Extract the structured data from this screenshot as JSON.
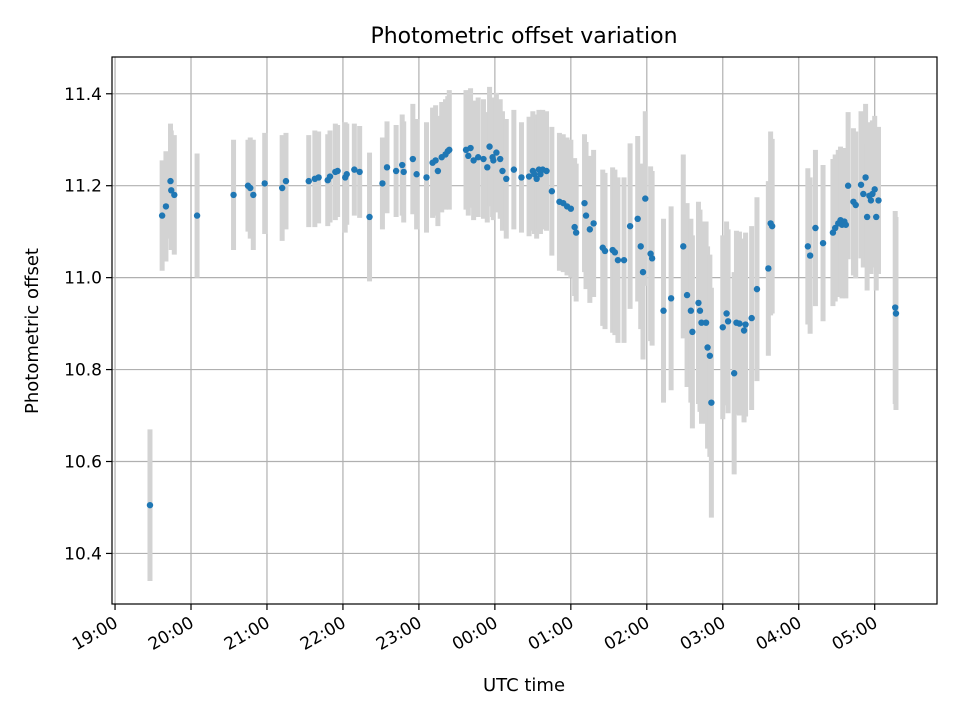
{
  "chart_data": {
    "type": "scatter",
    "title": "Photometric offset variation",
    "xlabel": "UTC time",
    "ylabel": "Photometric offset",
    "x_unit": "hours since 19:00 UTC",
    "xlim": [
      -0.04,
      10.82
    ],
    "ylim": [
      10.29,
      11.48
    ],
    "x_ticks": [
      0,
      1,
      2,
      3,
      4,
      5,
      6,
      7,
      8,
      9,
      10
    ],
    "x_tick_labels": [
      "19:00",
      "20:00",
      "21:00",
      "22:00",
      "23:00",
      "00:00",
      "01:00",
      "02:00",
      "03:00",
      "04:00",
      "05:00"
    ],
    "y_ticks": [
      10.4,
      10.6,
      10.8,
      11.0,
      11.2,
      11.4
    ],
    "y_tick_labels": [
      "10.4",
      "10.6",
      "10.8",
      "11.0",
      "11.2",
      "11.4"
    ],
    "grid": true,
    "marker_color": "#1f77b4",
    "errorbar_color": "#d3d3d3",
    "series": [
      {
        "name": "offset",
        "points": [
          [
            0.46,
            10.505,
            0.165
          ],
          [
            0.62,
            11.135,
            0.12
          ],
          [
            0.67,
            11.155,
            0.12
          ],
          [
            0.73,
            11.21,
            0.125
          ],
          [
            0.74,
            11.19,
            0.13
          ],
          [
            0.78,
            11.18,
            0.13
          ],
          [
            1.08,
            11.135,
            0.135
          ],
          [
            1.56,
            11.18,
            0.12
          ],
          [
            1.75,
            11.2,
            0.1
          ],
          [
            1.78,
            11.195,
            0.11
          ],
          [
            1.82,
            11.18,
            0.12
          ],
          [
            1.97,
            11.205,
            0.11
          ],
          [
            2.2,
            11.195,
            0.115
          ],
          [
            2.25,
            11.21,
            0.105
          ],
          [
            2.55,
            11.21,
            0.1
          ],
          [
            2.63,
            11.215,
            0.105
          ],
          [
            2.68,
            11.218,
            0.1
          ],
          [
            2.8,
            11.212,
            0.1
          ],
          [
            2.83,
            11.22,
            0.1
          ],
          [
            2.9,
            11.23,
            0.105
          ],
          [
            2.93,
            11.232,
            0.1
          ],
          [
            3.03,
            11.218,
            0.12
          ],
          [
            3.05,
            11.225,
            0.11
          ],
          [
            3.15,
            11.235,
            0.1
          ],
          [
            3.22,
            11.23,
            0.1
          ],
          [
            3.35,
            11.132,
            0.14
          ],
          [
            3.52,
            11.205,
            0.1
          ],
          [
            3.58,
            11.24,
            0.1
          ],
          [
            3.7,
            11.232,
            0.1
          ],
          [
            3.78,
            11.245,
            0.11
          ],
          [
            3.8,
            11.23,
            0.11
          ],
          [
            3.92,
            11.258,
            0.12
          ],
          [
            3.97,
            11.225,
            0.12
          ],
          [
            4.1,
            11.218,
            0.12
          ],
          [
            4.18,
            11.25,
            0.12
          ],
          [
            4.22,
            11.255,
            0.12
          ],
          [
            4.25,
            11.232,
            0.12
          ],
          [
            4.3,
            11.262,
            0.12
          ],
          [
            4.35,
            11.268,
            0.12
          ],
          [
            4.38,
            11.275,
            0.12
          ],
          [
            4.4,
            11.278,
            0.13
          ],
          [
            4.62,
            11.278,
            0.13
          ],
          [
            4.65,
            11.265,
            0.13
          ],
          [
            4.68,
            11.282,
            0.13
          ],
          [
            4.72,
            11.255,
            0.13
          ],
          [
            4.78,
            11.262,
            0.13
          ],
          [
            4.85,
            11.258,
            0.13
          ],
          [
            4.9,
            11.24,
            0.12
          ],
          [
            4.93,
            11.285,
            0.13
          ],
          [
            4.97,
            11.262,
            0.13
          ],
          [
            4.98,
            11.255,
            0.13
          ],
          [
            5.02,
            11.272,
            0.13
          ],
          [
            5.07,
            11.258,
            0.13
          ],
          [
            5.1,
            11.232,
            0.13
          ],
          [
            5.15,
            11.215,
            0.13
          ],
          [
            5.25,
            11.235,
            0.13
          ],
          [
            5.35,
            11.218,
            0.12
          ],
          [
            5.45,
            11.22,
            0.13
          ],
          [
            5.5,
            11.232,
            0.13
          ],
          [
            5.52,
            11.225,
            0.13
          ],
          [
            5.55,
            11.215,
            0.13
          ],
          [
            5.58,
            11.235,
            0.13
          ],
          [
            5.6,
            11.225,
            0.13
          ],
          [
            5.63,
            11.235,
            0.13
          ],
          [
            5.68,
            11.232,
            0.13
          ],
          [
            5.75,
            11.188,
            0.14
          ],
          [
            5.85,
            11.165,
            0.15
          ],
          [
            5.9,
            11.162,
            0.15
          ],
          [
            5.95,
            11.155,
            0.15
          ],
          [
            6.0,
            11.15,
            0.15
          ],
          [
            6.05,
            11.11,
            0.15
          ],
          [
            6.07,
            11.098,
            0.15
          ],
          [
            6.18,
            11.162,
            0.15
          ],
          [
            6.2,
            11.135,
            0.16
          ],
          [
            6.25,
            11.105,
            0.16
          ],
          [
            6.3,
            11.118,
            0.16
          ],
          [
            6.42,
            11.065,
            0.17
          ],
          [
            6.45,
            11.058,
            0.17
          ],
          [
            6.55,
            11.06,
            0.18
          ],
          [
            6.58,
            11.055,
            0.18
          ],
          [
            6.62,
            11.038,
            0.18
          ],
          [
            6.7,
            11.038,
            0.18
          ],
          [
            6.78,
            11.112,
            0.18
          ],
          [
            6.88,
            11.128,
            0.18
          ],
          [
            6.92,
            11.068,
            0.18
          ],
          [
            6.95,
            11.012,
            0.19
          ],
          [
            6.98,
            11.172,
            0.19
          ],
          [
            7.05,
            11.052,
            0.19
          ],
          [
            7.07,
            11.042,
            0.19
          ],
          [
            7.22,
            10.928,
            0.2
          ],
          [
            7.32,
            10.955,
            0.2
          ],
          [
            7.48,
            11.068,
            0.2
          ],
          [
            7.53,
            10.962,
            0.2
          ],
          [
            7.58,
            10.928,
            0.2
          ],
          [
            7.6,
            10.882,
            0.21
          ],
          [
            7.68,
            10.945,
            0.22
          ],
          [
            7.7,
            10.928,
            0.22
          ],
          [
            7.72,
            10.902,
            0.22
          ],
          [
            7.78,
            10.902,
            0.22
          ],
          [
            7.8,
            10.848,
            0.22
          ],
          [
            7.83,
            10.83,
            0.22
          ],
          [
            7.85,
            10.728,
            0.25
          ],
          [
            8.0,
            10.892,
            0.2
          ],
          [
            8.05,
            10.922,
            0.2
          ],
          [
            8.07,
            10.905,
            0.2
          ],
          [
            8.15,
            10.792,
            0.22
          ],
          [
            8.18,
            10.902,
            0.2
          ],
          [
            8.22,
            10.9,
            0.2
          ],
          [
            8.28,
            10.885,
            0.2
          ],
          [
            8.3,
            10.898,
            0.2
          ],
          [
            8.38,
            10.912,
            0.2
          ],
          [
            8.45,
            10.975,
            0.2
          ],
          [
            8.6,
            11.02,
            0.19
          ],
          [
            8.63,
            11.118,
            0.2
          ],
          [
            8.65,
            11.112,
            0.19
          ],
          [
            9.12,
            11.068,
            0.17
          ],
          [
            9.15,
            11.048,
            0.17
          ],
          [
            9.22,
            11.108,
            0.17
          ],
          [
            9.32,
            11.075,
            0.17
          ],
          [
            9.45,
            11.098,
            0.16
          ],
          [
            9.48,
            11.108,
            0.16
          ],
          [
            9.52,
            11.118,
            0.16
          ],
          [
            9.55,
            11.125,
            0.16
          ],
          [
            9.57,
            11.115,
            0.16
          ],
          [
            9.6,
            11.122,
            0.16
          ],
          [
            9.62,
            11.115,
            0.16
          ],
          [
            9.65,
            11.2,
            0.16
          ],
          [
            9.72,
            11.165,
            0.16
          ],
          [
            9.75,
            11.158,
            0.16
          ],
          [
            9.82,
            11.202,
            0.16
          ],
          [
            9.85,
            11.182,
            0.16
          ],
          [
            9.88,
            11.218,
            0.16
          ],
          [
            9.9,
            11.132,
            0.16
          ],
          [
            9.93,
            11.178,
            0.16
          ],
          [
            9.95,
            11.168,
            0.16
          ],
          [
            9.97,
            11.182,
            0.16
          ],
          [
            10.0,
            11.192,
            0.16
          ],
          [
            10.02,
            11.132,
            0.16
          ],
          [
            10.05,
            11.168,
            0.16
          ],
          [
            10.27,
            10.935,
            0.21
          ],
          [
            10.28,
            10.922,
            0.21
          ]
        ]
      }
    ]
  }
}
